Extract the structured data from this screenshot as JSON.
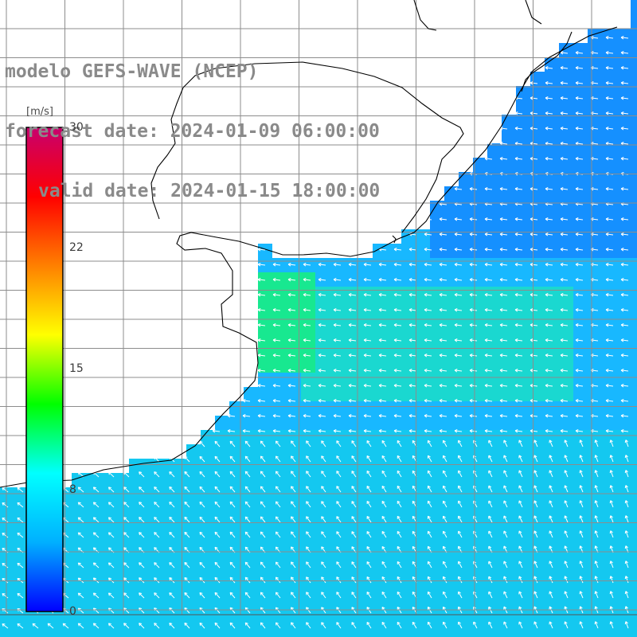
{
  "header": {
    "model_line": "modelo GEFS-WAVE (NCEP)",
    "forecast_line": "forecast date: 2024-01-09 06:00:00",
    "valid_line": "valid date: 2024-01-15 18:00:00"
  },
  "colorbar": {
    "unit": "[m/s]",
    "min": 0,
    "max": 30,
    "ticks": [
      "30",
      "22",
      "15",
      "8",
      "0"
    ],
    "tick_values": [
      30,
      22,
      15,
      8,
      0
    ],
    "stops": [
      "#0000ff",
      "#00b0ff",
      "#00ffff",
      "#00ff00",
      "#ffff00",
      "#ff8000",
      "#ff0000",
      "#c8006e"
    ]
  },
  "map": {
    "land_color": "#ffffff",
    "grid_color": "#8c8c8c",
    "coastline_color": "#000000",
    "arrow_color": "#ffffff",
    "field_description_colors": {
      "dominant": "#00c8ff",
      "strong": "#00e88a",
      "weak": "#0066ff"
    }
  }
}
